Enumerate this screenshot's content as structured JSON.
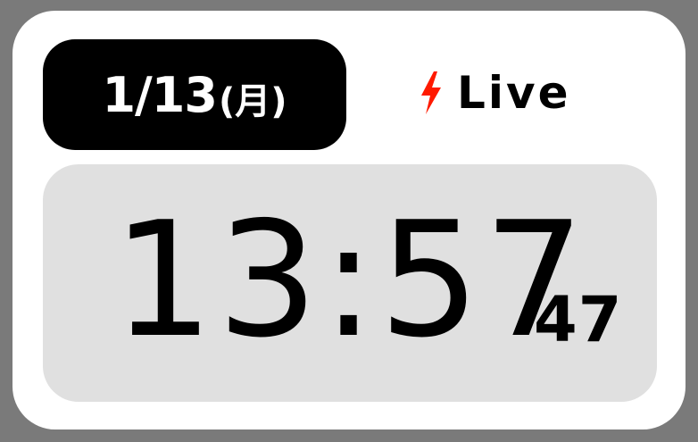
{
  "date": {
    "month_day": "1/13",
    "weekday": "(月)"
  },
  "status": {
    "icon": "lightning-bolt-icon",
    "label": "Live",
    "icon_color": "#ff1a00"
  },
  "clock": {
    "hours": "13",
    "separator": ":",
    "minutes": "57",
    "seconds": "47"
  },
  "colors": {
    "frame": "#7a7a7a",
    "card": "#ffffff",
    "date_pill": "#000000",
    "clock_panel": "#e0e0e0"
  }
}
